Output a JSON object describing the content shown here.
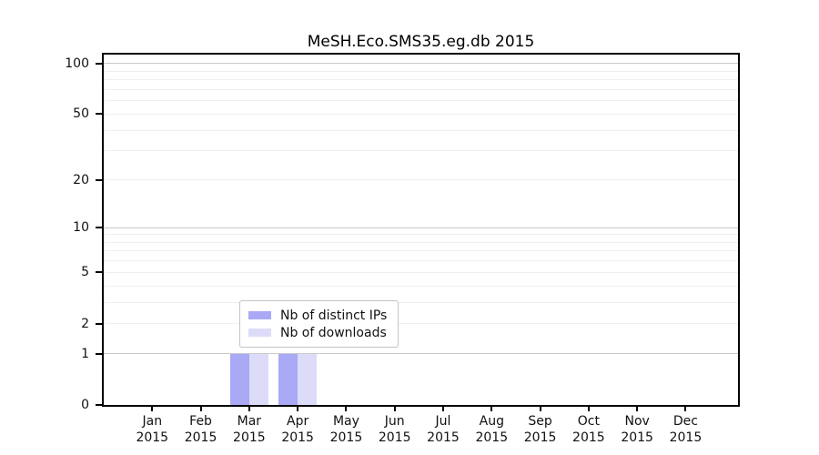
{
  "figure": {
    "background": "#ffffff"
  },
  "chart_data": {
    "type": "bar",
    "title": "MeSH.Eco.SMS35.eg.db 2015",
    "categories": [
      "Jan",
      "Feb",
      "Mar",
      "Apr",
      "May",
      "Jun",
      "Jul",
      "Aug",
      "Sep",
      "Oct",
      "Nov",
      "Dec"
    ],
    "year_labels": [
      "2015",
      "2015",
      "2015",
      "2015",
      "2015",
      "2015",
      "2015",
      "2015",
      "2015",
      "2015",
      "2015",
      "2015"
    ],
    "series": [
      {
        "name": "Nb of distinct IPs",
        "color": "#a9a9f6",
        "values": [
          0,
          0,
          1,
          1,
          0,
          0,
          0,
          0,
          0,
          0,
          0,
          0
        ]
      },
      {
        "name": "Nb of downloads",
        "color": "#dcdcf9",
        "values": [
          0,
          0,
          1,
          1,
          0,
          0,
          0,
          0,
          0,
          0,
          0,
          0
        ]
      }
    ],
    "xlabel": "",
    "ylabel": "",
    "y_scale": "log1p",
    "ylim": [
      0,
      113
    ],
    "yticks": [
      0,
      1,
      2,
      5,
      10,
      20,
      50,
      100
    ],
    "major_gridlines": [
      1,
      10,
      100
    ],
    "minor_gridlines": [
      2,
      3,
      4,
      5,
      6,
      7,
      8,
      9,
      20,
      30,
      40,
      50,
      60,
      70,
      80,
      90
    ],
    "grid": true,
    "legend_position": "inside-bottom-center-left",
    "colors": {
      "major_grid": "#c9c9c9",
      "minor_grid": "#efefef",
      "spine": "#000000",
      "text": "#111111"
    }
  }
}
